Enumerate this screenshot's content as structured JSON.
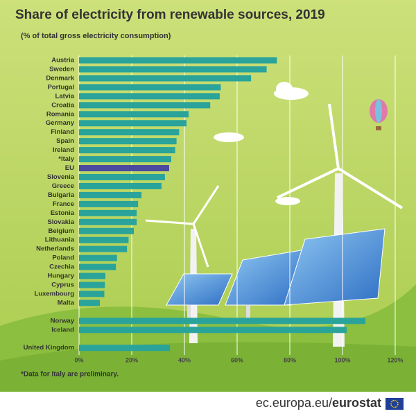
{
  "chart_data": {
    "type": "barh",
    "title": "Share of electricity from renewable sources, 2019",
    "subtitle": "(% of total gross electricity consumption)",
    "note": "*Data for Italy are preliminary.",
    "source_site": "ec.europa.eu/",
    "source_brand": "eurostat",
    "categories": [
      "Austria",
      "Sweden",
      "Denmark",
      "Portugal",
      "Latvia",
      "Croatia",
      "Romania",
      "Germany",
      "Finland",
      "Spain",
      "Ireland",
      "*Italy",
      "EU",
      "Slovenia",
      "Greece",
      "Bulgaria",
      "France",
      "Estonia",
      "Slovakia",
      "Belgium",
      "Lithuania",
      "Netherlands",
      "Poland",
      "Czechia",
      "Hungary",
      "Cyprus",
      "Luxembourg",
      "Malta",
      null,
      "Norway",
      "Iceland",
      null,
      "United Kingdom"
    ],
    "values": [
      75.1,
      71.2,
      65.3,
      53.8,
      53.4,
      49.8,
      41.6,
      40.8,
      38.0,
      37.0,
      36.5,
      35.0,
      34.2,
      32.6,
      31.3,
      23.7,
      22.4,
      21.9,
      21.9,
      20.8,
      18.8,
      18.2,
      14.4,
      14.0,
      10.0,
      9.8,
      9.6,
      7.9,
      null,
      108.7,
      101.6,
      null,
      34.5
    ],
    "colors": [
      "#2aa39a",
      "#2aa39a",
      "#2aa39a",
      "#2aa39a",
      "#2aa39a",
      "#2aa39a",
      "#2aa39a",
      "#2aa39a",
      "#2aa39a",
      "#2aa39a",
      "#2aa39a",
      "#2aa39a",
      "#4b4a9e",
      "#2aa39a",
      "#2aa39a",
      "#2aa39a",
      "#2aa39a",
      "#2aa39a",
      "#2aa39a",
      "#2aa39a",
      "#2aa39a",
      "#2aa39a",
      "#2aa39a",
      "#2aa39a",
      "#2aa39a",
      "#2aa39a",
      "#2aa39a",
      "#2aa39a",
      null,
      "#2aa39a",
      "#2aa39a",
      null,
      "#2aa39a"
    ],
    "xlim": [
      0,
      120
    ],
    "xticks": [
      {
        "value": 0,
        "label": "0%"
      },
      {
        "value": 20,
        "label": "20%"
      },
      {
        "value": 40,
        "label": "40%"
      },
      {
        "value": 60,
        "label": "60%"
      },
      {
        "value": 80,
        "label": "80%"
      },
      {
        "value": 100,
        "label": "100%"
      },
      {
        "value": 120,
        "label": "120%"
      }
    ],
    "grid": true
  }
}
